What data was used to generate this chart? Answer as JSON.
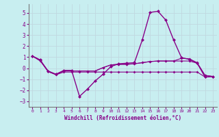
{
  "xlabel": "Windchill (Refroidissement éolien,°C)",
  "background_color": "#c8eef0",
  "grid_color": "#c0d8e0",
  "line_color": "#880088",
  "xlim": [
    -0.5,
    23.5
  ],
  "ylim": [
    -3.5,
    5.8
  ],
  "yticks": [
    -3,
    -2,
    -1,
    0,
    1,
    2,
    3,
    4,
    5
  ],
  "xticks": [
    0,
    1,
    2,
    3,
    4,
    5,
    6,
    7,
    8,
    9,
    10,
    11,
    12,
    13,
    14,
    15,
    16,
    17,
    18,
    19,
    20,
    21,
    22,
    23
  ],
  "series": [
    [
      1.1,
      0.75,
      -0.3,
      -0.55,
      -0.2,
      -0.2,
      -2.55,
      -1.9,
      -1.15,
      -0.55,
      0.15,
      0.4,
      0.45,
      0.5,
      2.55,
      5.05,
      5.15,
      4.35,
      2.55,
      0.95,
      0.8,
      0.45,
      -0.8,
      -0.75
    ],
    [
      1.1,
      0.65,
      -0.3,
      -0.6,
      -0.35,
      -0.35,
      -0.35,
      -0.35,
      -0.35,
      -0.35,
      -0.35,
      -0.35,
      -0.35,
      -0.35,
      -0.35,
      -0.35,
      -0.35,
      -0.35,
      -0.35,
      -0.35,
      -0.35,
      -0.35,
      -0.8,
      -0.75
    ],
    [
      1.1,
      0.7,
      -0.25,
      -0.55,
      -0.25,
      -0.25,
      -0.25,
      -0.25,
      -0.25,
      0.05,
      0.3,
      0.35,
      0.35,
      0.4,
      0.5,
      0.6,
      0.65,
      0.65,
      0.65,
      0.65,
      0.65,
      0.45,
      -0.65,
      -0.75
    ],
    [
      1.1,
      0.7,
      -0.25,
      -0.55,
      -0.25,
      -0.25,
      -0.25,
      -0.25,
      -0.25,
      0.05,
      0.3,
      0.35,
      0.35,
      0.4,
      0.5,
      0.6,
      0.65,
      0.65,
      0.65,
      0.9,
      0.85,
      0.5,
      -0.65,
      -0.75
    ]
  ]
}
